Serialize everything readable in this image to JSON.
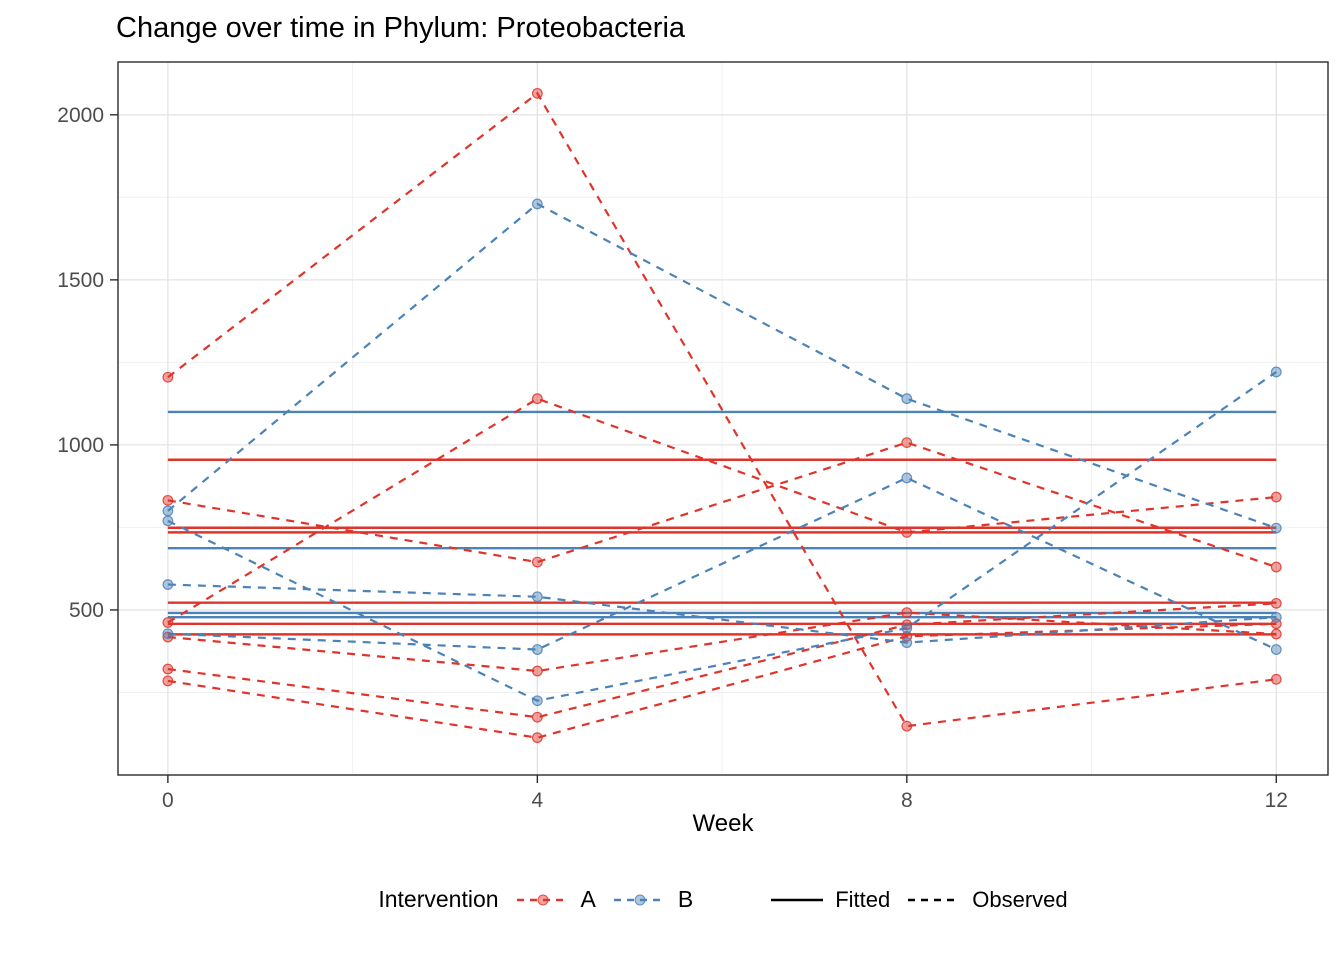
{
  "page": {
    "title": "Change over time in Phylum: Proteobacteria"
  },
  "chart_data": {
    "type": "line",
    "title": "Change over time in Phylum: Proteobacteria",
    "xlabel": "Week",
    "ylabel": "",
    "x_ticks": [
      0,
      4,
      8,
      12
    ],
    "y_ticks": [
      500,
      1000,
      1500,
      2000
    ],
    "y_minor": [
      250,
      750,
      1250,
      1750
    ],
    "x_minor": [
      2,
      6,
      10
    ],
    "xlim": [
      -0.54,
      12.56
    ],
    "ylim": [
      0,
      2160
    ],
    "grid": "on",
    "weeks": [
      0,
      4,
      8,
      12
    ],
    "colors": {
      "A": "#E0342B",
      "B": "#4B83B9",
      "linetype_key": "#000000"
    },
    "series": [
      {
        "group": "A",
        "linetype_observed": "dashed",
        "observed": [
          1205,
          2065,
          148,
          290
        ],
        "fitted": 955
      },
      {
        "group": "A",
        "linetype_observed": "dashed",
        "observed": [
          832,
          645,
          1007,
          630
        ],
        "fitted": 749
      },
      {
        "group": "A",
        "linetype_observed": "dashed",
        "observed": [
          462,
          1140,
          735,
          842
        ],
        "fitted": 735
      },
      {
        "group": "A",
        "linetype_observed": "dashed",
        "observed": [
          418,
          315,
          492,
          427
        ],
        "fitted": 458
      },
      {
        "group": "A",
        "linetype_observed": "dashed",
        "observed": [
          321,
          175,
          455,
          520
        ],
        "fitted": 522
      },
      {
        "group": "A",
        "linetype_observed": "dashed",
        "observed": [
          285,
          113,
          420,
          458
        ],
        "fitted": 426
      },
      {
        "group": "B",
        "linetype_observed": "dashed",
        "observed": [
          800,
          1730,
          1140,
          748
        ],
        "fitted": 1100
      },
      {
        "group": "B",
        "linetype_observed": "dashed",
        "observed": [
          770,
          225,
          445,
          1221
        ],
        "fitted": 687
      },
      {
        "group": "B",
        "linetype_observed": "dashed",
        "observed": [
          577,
          540,
          401,
          478
        ],
        "fitted": 491
      },
      {
        "group": "B",
        "linetype_observed": "dashed",
        "observed": [
          428,
          380,
          900,
          380
        ],
        "fitted": 478
      }
    ],
    "legend": {
      "position": "bottom",
      "title": "Intervention",
      "groups": [
        {
          "label": "A",
          "color": "#E0342B"
        },
        {
          "label": "B",
          "color": "#4B83B9"
        }
      ],
      "linetypes": [
        {
          "label": "Fitted",
          "style": "solid"
        },
        {
          "label": "Observed",
          "style": "dashed"
        }
      ]
    }
  }
}
